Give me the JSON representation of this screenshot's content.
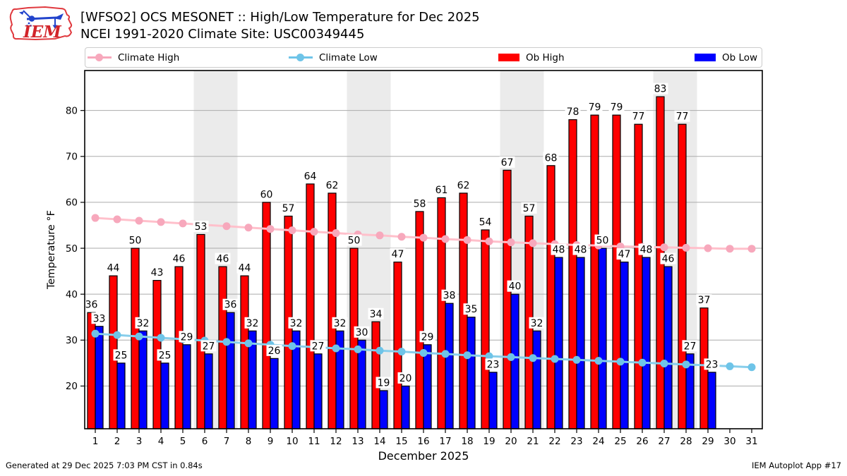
{
  "header": {
    "logo_text": "IEM",
    "title_line1": "[WFSO2] OCS MESONET :: High/Low Temperature for Dec 2025",
    "title_line2": "NCEI 1991-2020 Climate Site: USC00349445"
  },
  "legend": {
    "items": [
      {
        "label": "Climate High",
        "type": "line",
        "color": "#f7a8bc"
      },
      {
        "label": "Climate Low",
        "type": "line",
        "color": "#6ec4e8"
      },
      {
        "label": "Ob High",
        "type": "patch",
        "color": "#ff0000"
      },
      {
        "label": "Ob Low",
        "type": "patch",
        "color": "#0000ff"
      }
    ]
  },
  "chart_data": {
    "type": "bar",
    "title": "[WFSO2] OCS MESONET :: High/Low Temperature for Dec 2025",
    "xlabel": "December 2025",
    "ylabel": "Temperature °F",
    "x": [
      1,
      2,
      3,
      4,
      5,
      6,
      7,
      8,
      9,
      10,
      11,
      12,
      13,
      14,
      15,
      16,
      17,
      18,
      19,
      20,
      21,
      22,
      23,
      24,
      25,
      26,
      27,
      28,
      29,
      30,
      31
    ],
    "series": [
      {
        "name": "Ob High",
        "type": "bar",
        "color": "#ff0000",
        "values": [
          36,
          44,
          50,
          43,
          46,
          53,
          46,
          44,
          60,
          57,
          64,
          62,
          50,
          34,
          47,
          58,
          61,
          62,
          54,
          67,
          57,
          68,
          78,
          79,
          79,
          77,
          83,
          77,
          37,
          null,
          null
        ]
      },
      {
        "name": "Ob Low",
        "type": "bar",
        "color": "#0000ff",
        "values": [
          33,
          25,
          32,
          25,
          29,
          27,
          36,
          32,
          26,
          32,
          27,
          32,
          30,
          19,
          20,
          29,
          38,
          35,
          23,
          40,
          32,
          48,
          48,
          50,
          47,
          48,
          46,
          27,
          23,
          null,
          null
        ]
      },
      {
        "name": "Climate High",
        "type": "line",
        "color": "#ffc0cb",
        "marker_color": "#f7a8bc",
        "values": [
          56.6,
          56.3,
          56.0,
          55.7,
          55.4,
          55.1,
          54.8,
          54.5,
          54.2,
          53.9,
          53.6,
          53.3,
          53.0,
          52.8,
          52.5,
          52.3,
          52.0,
          51.8,
          51.5,
          51.3,
          51.1,
          50.9,
          50.7,
          50.6,
          50.4,
          50.3,
          50.2,
          50.1,
          50.0,
          49.9,
          49.9
        ]
      },
      {
        "name": "Climate Low",
        "type": "line",
        "color": "#87ceeb",
        "marker_color": "#6ec4e8",
        "values": [
          31.4,
          31.1,
          30.8,
          30.5,
          30.2,
          29.9,
          29.6,
          29.3,
          29.0,
          28.7,
          28.5,
          28.2,
          28.0,
          27.7,
          27.5,
          27.2,
          27.0,
          26.7,
          26.5,
          26.3,
          26.1,
          25.9,
          25.7,
          25.5,
          25.3,
          25.1,
          24.9,
          24.7,
          24.5,
          24.3,
          24.1
        ]
      }
    ],
    "yticks": [
      20,
      30,
      40,
      50,
      60,
      70,
      80
    ],
    "ylim": [
      10.7,
      88.7
    ],
    "grid": true,
    "weekend_bands": [
      [
        5.5,
        7.5
      ],
      [
        12.5,
        14.5
      ],
      [
        19.5,
        21.5
      ],
      [
        26.5,
        28.5
      ]
    ],
    "colors": {
      "weekend_band": "#ebebeb",
      "gridline": "#ababab",
      "bar_edge": "#000000"
    }
  },
  "footer": {
    "left": "Generated at 29 Dec 2025 7:03 PM CST in 0.84s",
    "right": "IEM Autoplot App #17"
  }
}
